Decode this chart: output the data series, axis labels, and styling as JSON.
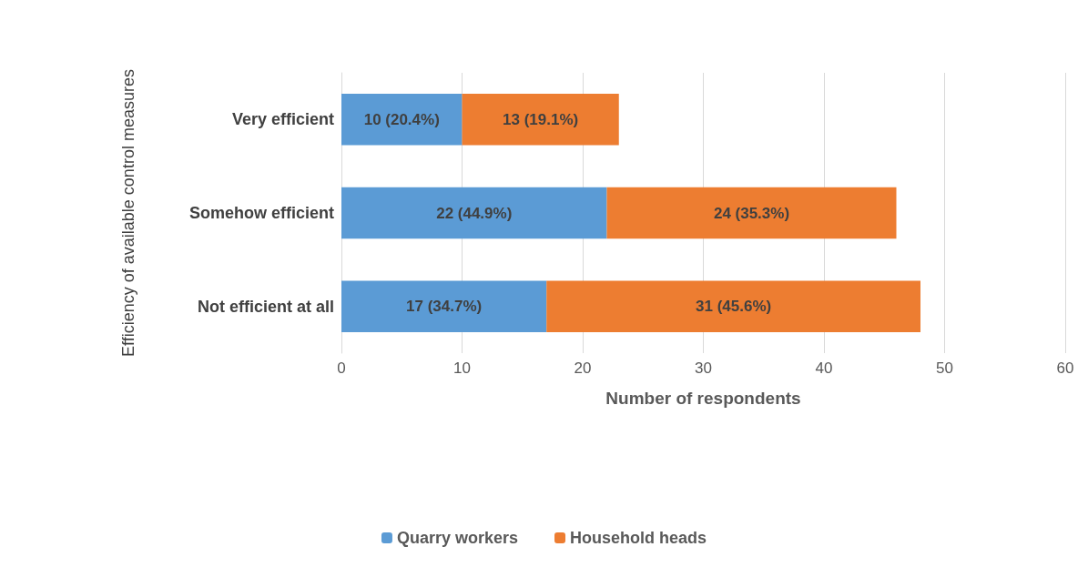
{
  "chart_data": {
    "type": "bar",
    "orientation": "horizontal",
    "stacked": true,
    "categories": [
      "Very efficient",
      "Somehow efficient",
      "Not efficient at all"
    ],
    "series": [
      {
        "name": "Quarry workers",
        "color": "#5b9bd5",
        "values": [
          10,
          22,
          17
        ],
        "value_labels": [
          "10 (20.4%)",
          "22 (44.9%)",
          "17 (34.7%)"
        ]
      },
      {
        "name": "Household heads",
        "color": "#ed7d31",
        "values": [
          13,
          24,
          31
        ],
        "value_labels": [
          "13 (19.1%)",
          "24 (35.3%)",
          "31 (45.6%)"
        ]
      }
    ],
    "xlim": [
      0,
      60
    ],
    "xticks": [
      0,
      10,
      20,
      30,
      40,
      50,
      60
    ],
    "xlabel": "Number of respondents",
    "ylabel": "Efficiency of available control measures",
    "grid": "x",
    "legend": "bottom"
  }
}
